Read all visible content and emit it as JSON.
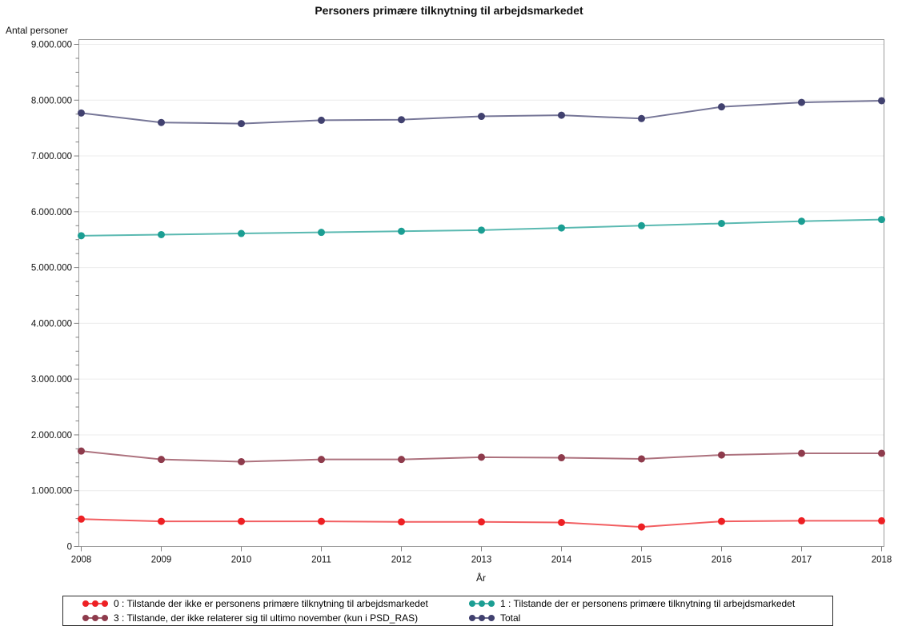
{
  "chart_data": {
    "type": "line",
    "title": "Personers primære tilknytning til arbejdsmarkedet",
    "xlabel": "År",
    "ylabel": "Antal personer",
    "categories": [
      "2008",
      "2009",
      "2010",
      "2011",
      "2012",
      "2013",
      "2014",
      "2015",
      "2016",
      "2017",
      "2018"
    ],
    "ylim": [
      0,
      9000000
    ],
    "y_major_step": 1000000,
    "y_minor_step": 250000,
    "grid": true,
    "legend_position": "bottom",
    "series": [
      {
        "id": "0",
        "legend_label": "0 : Tilstande der ikke er personens primære tilknytning til arbejdsmarkedet",
        "color": "#ED2024",
        "values": [
          490000,
          450000,
          450000,
          450000,
          440000,
          440000,
          430000,
          350000,
          450000,
          460000,
          460000
        ]
      },
      {
        "id": "1",
        "legend_label": "1 : Tilstande der er personens primære tilknytning til arbejdsmarkedet",
        "color": "#1B9E93",
        "values": [
          5570000,
          5590000,
          5610000,
          5630000,
          5650000,
          5670000,
          5710000,
          5750000,
          5790000,
          5830000,
          5860000
        ]
      },
      {
        "id": "3",
        "legend_label": "3 : Tilstande, der ikke relaterer sig til ultimo november (kun i PSD_RAS)",
        "color": "#8E3B4C",
        "values": [
          1710000,
          1560000,
          1520000,
          1560000,
          1560000,
          1600000,
          1590000,
          1570000,
          1640000,
          1670000,
          1670000
        ]
      },
      {
        "id": "total",
        "legend_label": "Total",
        "color": "#41416F",
        "values": [
          7770000,
          7600000,
          7580000,
          7640000,
          7650000,
          7710000,
          7730000,
          7670000,
          7880000,
          7960000,
          7990000
        ]
      }
    ],
    "colors": {
      "gridline": "#ececec",
      "plot_border": "#9b9b9b",
      "tick": "#808080",
      "legend_border": "#2b2b2b",
      "background": "#ffffff"
    }
  }
}
